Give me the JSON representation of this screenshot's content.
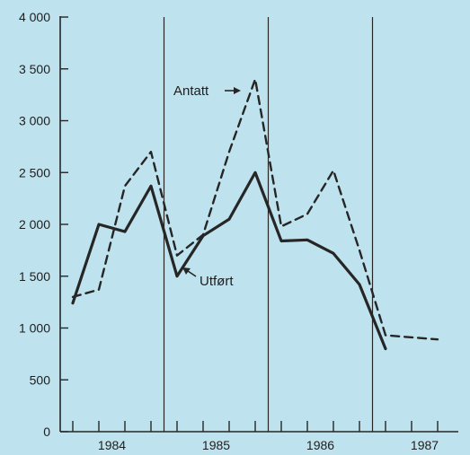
{
  "chart_data": {
    "type": "line",
    "x": [
      "1984-Q1",
      "1984-Q2",
      "1984-Q3",
      "1984-Q4",
      "1985-Q1",
      "1985-Q2",
      "1985-Q3",
      "1985-Q4",
      "1986-Q1",
      "1986-Q2",
      "1986-Q3",
      "1986-Q4",
      "1987-Q1",
      "1987-Q2",
      "1987-Q3"
    ],
    "year_labels": [
      "1984",
      "1985",
      "1986",
      "1987"
    ],
    "y_tick_labels": [
      "0",
      "500",
      "1 000",
      "1 500",
      "2 000",
      "2 500",
      "3 000",
      "3 500",
      "4 000"
    ],
    "y_ticks": [
      0,
      500,
      1000,
      1500,
      2000,
      2500,
      3000,
      3500,
      4000
    ],
    "ylim": [
      0,
      4000
    ],
    "series": [
      {
        "name": "Antatt",
        "style": "dashed",
        "values": [
          1300,
          1370,
          2370,
          2700,
          1700,
          1900,
          2700,
          3400,
          1980,
          2100,
          2520,
          1750,
          930,
          910,
          890
        ]
      },
      {
        "name": "Utført",
        "style": "solid",
        "values": [
          1240,
          2000,
          1930,
          2370,
          1500,
          1890,
          2050,
          2500,
          1840,
          1850,
          1720,
          1420,
          800,
          null,
          null
        ]
      }
    ],
    "annotations": [
      "Antatt",
      "Utført"
    ],
    "line_color": "#262626",
    "background_color": "#bfe3ee"
  }
}
